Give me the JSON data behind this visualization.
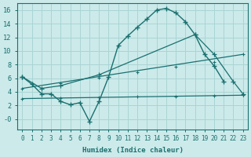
{
  "xlabel": "Humidex (Indice chaleur)",
  "background_color": "#cceaea",
  "grid_color": "#aad4d4",
  "line_color": "#1a7070",
  "xlim": [
    -0.5,
    23.5
  ],
  "ylim": [
    -1.5,
    17
  ],
  "xticks": [
    0,
    1,
    2,
    3,
    4,
    5,
    6,
    7,
    8,
    9,
    10,
    11,
    12,
    13,
    14,
    15,
    16,
    17,
    18,
    19,
    20,
    21,
    22,
    23
  ],
  "yticks": [
    0,
    2,
    4,
    6,
    8,
    10,
    12,
    14,
    16
  ],
  "ytick_labels": [
    "-0",
    "2",
    "4",
    "6",
    "8",
    "10",
    "12",
    "14",
    "16"
  ],
  "main_x": [
    0,
    1,
    2,
    3,
    4,
    5,
    6,
    7,
    8,
    9,
    10,
    11,
    12,
    13,
    14,
    15,
    16,
    17,
    18,
    19,
    20,
    21
  ],
  "main_y": [
    6.2,
    5.1,
    3.7,
    3.7,
    2.6,
    2.1,
    2.4,
    -0.35,
    2.6,
    6.2,
    10.8,
    12.2,
    13.5,
    14.7,
    16.0,
    16.25,
    15.6,
    14.3,
    12.4,
    9.5,
    7.8,
    5.5
  ],
  "line2_x": [
    0,
    2,
    4,
    8,
    18,
    20,
    22,
    23
  ],
  "line2_y": [
    6.2,
    4.5,
    4.9,
    6.5,
    12.4,
    9.5,
    5.5,
    3.7
  ],
  "line3_x": [
    0,
    23
  ],
  "line3_y": [
    4.5,
    9.5
  ],
  "line4_x": [
    0,
    23
  ],
  "line4_y": [
    3.0,
    3.5
  ]
}
